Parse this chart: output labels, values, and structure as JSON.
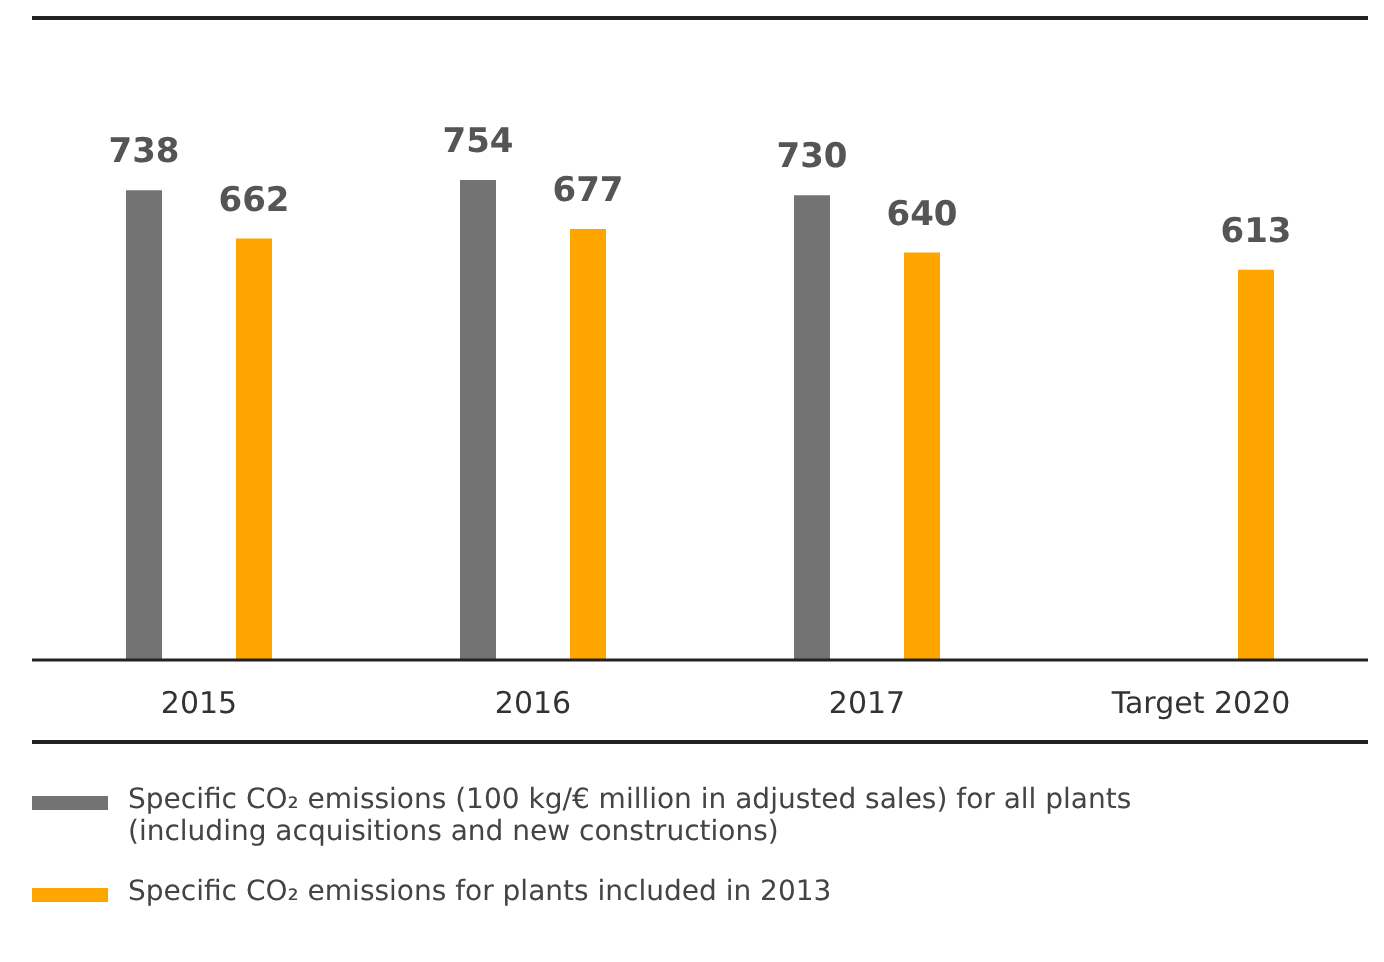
{
  "chart_data": {
    "type": "bar",
    "categories": [
      "2015",
      "2016",
      "2017",
      "Target 2020"
    ],
    "series": [
      {
        "name": "Specific CO₂ emissions (100 kg/€ million in adjusted sales) for all plants (including acquisitions and new constructions)",
        "color": "#737373",
        "values": [
          738,
          754,
          730,
          null
        ]
      },
      {
        "name": "Specific CO₂ emissions for plants included in 2013",
        "color": "#ffa500",
        "values": [
          662,
          677,
          640,
          613
        ]
      }
    ],
    "data_labels": true,
    "grid": false,
    "legend": "bottom"
  }
}
